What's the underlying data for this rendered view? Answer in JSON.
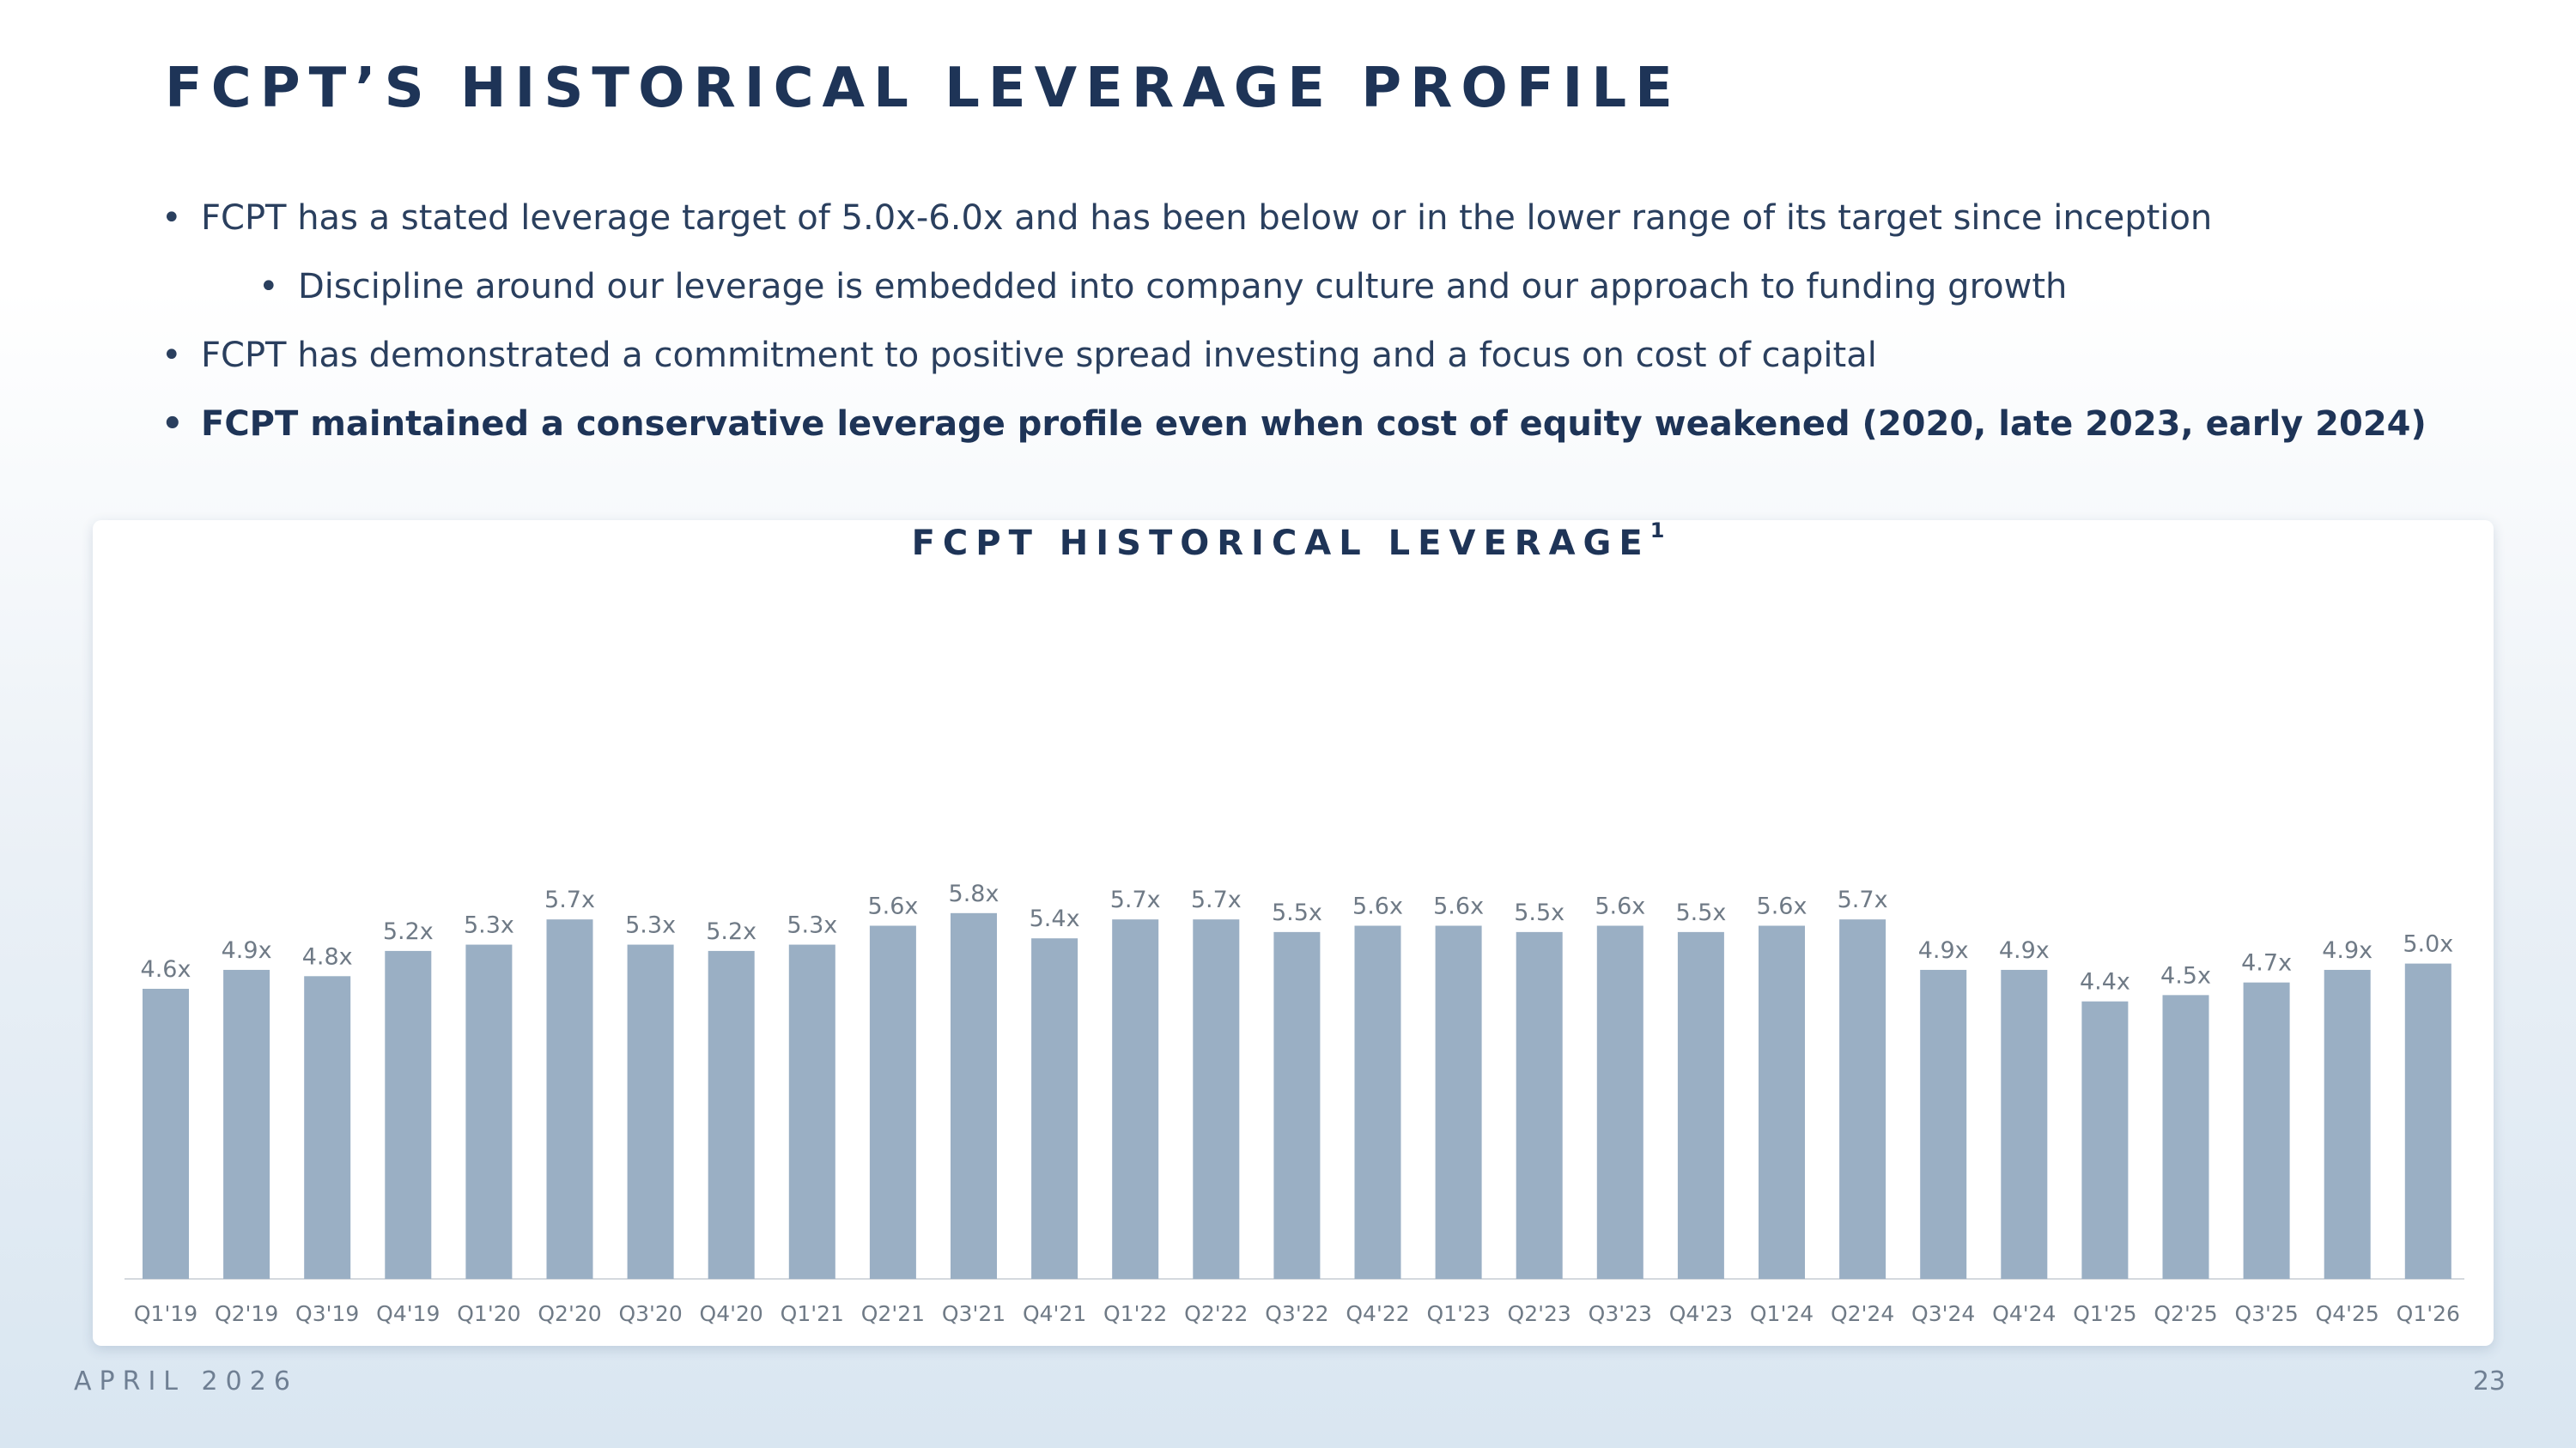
{
  "slide": {
    "title": "FCPT’S HISTORICAL LEVERAGE PROFILE",
    "bullets": [
      "FCPT has a stated leverage target of 5.0x-6.0x and has been below or in the lower range of its target since inception",
      "Discipline around our leverage is embedded into company culture and our approach to funding growth",
      "FCPT has demonstrated a commitment to positive spread investing and a focus on cost of capital",
      "FCPT maintained a conservative leverage profile even when cost of equity weakened (2020, late 2023, early 2024)"
    ],
    "footer_date": "APRIL 2026",
    "page_number": "23"
  },
  "chart_data": {
    "type": "bar",
    "title": "FCPT HISTORICAL LEVERAGE",
    "title_footnote": "1",
    "categories": [
      "Q1'19",
      "Q2'19",
      "Q3'19",
      "Q4'19",
      "Q1'20",
      "Q2'20",
      "Q3'20",
      "Q4'20",
      "Q1'21",
      "Q2'21",
      "Q3'21",
      "Q4'21",
      "Q1'22",
      "Q2'22",
      "Q3'22",
      "Q4'22",
      "Q1'23",
      "Q2'23",
      "Q3'23",
      "Q4'23",
      "Q1'24",
      "Q2'24",
      "Q3'24",
      "Q4'24",
      "Q1'25",
      "Q2'25",
      "Q3'25",
      "Q4'25",
      "Q1'26"
    ],
    "values": [
      4.6,
      4.9,
      4.8,
      5.2,
      5.3,
      5.7,
      5.3,
      5.2,
      5.3,
      5.6,
      5.8,
      5.4,
      5.7,
      5.7,
      5.5,
      5.6,
      5.6,
      5.5,
      5.6,
      5.5,
      5.6,
      5.7,
      4.9,
      4.9,
      4.4,
      4.5,
      4.7,
      4.9,
      5.0
    ],
    "data_labels": [
      "4.6x",
      "4.9x",
      "4.8x",
      "5.2x",
      "5.3x",
      "5.7x",
      "5.3x",
      "5.2x",
      "5.3x",
      "5.6x",
      "5.8x",
      "5.4x",
      "5.7x",
      "5.7x",
      "5.5x",
      "5.6x",
      "5.6x",
      "5.5x",
      "5.6x",
      "5.5x",
      "5.6x",
      "5.7x",
      "4.9x",
      "4.9x",
      "4.4x",
      "4.5x",
      "4.7x",
      "4.9x",
      "5.0x"
    ],
    "ylim": [
      0,
      6.4
    ],
    "bar_color": "#9aafc4",
    "label_color": "#6f7a86",
    "baseline_color": "#d5d9de",
    "grid": false,
    "legend": "none"
  }
}
